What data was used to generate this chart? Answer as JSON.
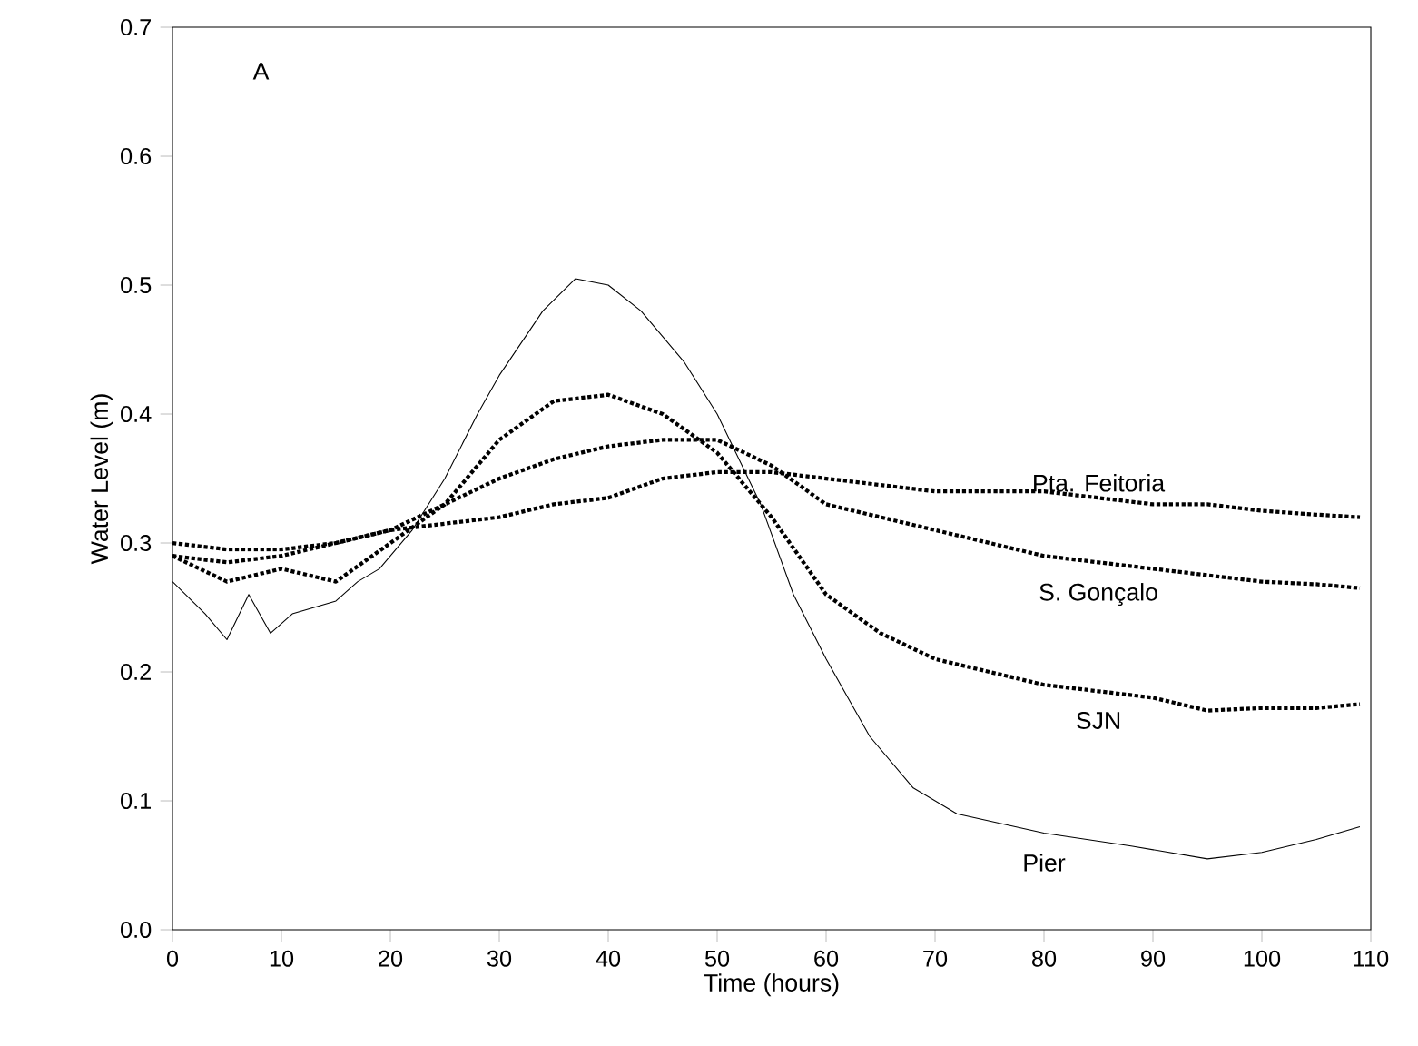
{
  "chart_data": {
    "type": "line",
    "xlabel": "Time (hours)",
    "ylabel": "Water Level (m)",
    "annotations": [
      "A"
    ],
    "xlim": [
      0,
      110
    ],
    "xticks": [
      0,
      10,
      20,
      30,
      40,
      50,
      60,
      70,
      80,
      90,
      100,
      110
    ],
    "ylim": [
      0,
      0.7
    ],
    "yticks": [
      {
        "value": 0,
        "label": "0.0"
      },
      {
        "value": 0.1,
        "label": "0.1"
      },
      {
        "value": 0.2,
        "label": "0.2"
      },
      {
        "value": 0.3,
        "label": "0.3"
      },
      {
        "value": 0.4,
        "label": "0.4"
      },
      {
        "value": 0.5,
        "label": "0.5"
      },
      {
        "value": 0.6,
        "label": "0.6"
      },
      {
        "value": 0.7,
        "label": "0.7"
      }
    ],
    "grid": false,
    "legend": false,
    "series": [
      {
        "name": "Pta. Feitoria",
        "color": "#000000",
        "line_style": "dotted",
        "x": [
          0,
          5,
          10,
          15,
          20,
          25,
          30,
          35,
          40,
          45,
          50,
          55,
          60,
          65,
          70,
          75,
          80,
          85,
          90,
          95,
          100,
          105,
          109
        ],
        "values": [
          0.3,
          0.295,
          0.295,
          0.3,
          0.31,
          0.315,
          0.32,
          0.33,
          0.335,
          0.35,
          0.355,
          0.355,
          0.35,
          0.345,
          0.34,
          0.34,
          0.34,
          0.335,
          0.33,
          0.33,
          0.325,
          0.322,
          0.32
        ]
      },
      {
        "name": "S. Gonçalo",
        "color": "#000000",
        "line_style": "dotted",
        "x": [
          0,
          5,
          10,
          15,
          20,
          25,
          30,
          35,
          40,
          45,
          50,
          55,
          60,
          65,
          70,
          75,
          80,
          85,
          90,
          95,
          100,
          105,
          109
        ],
        "values": [
          0.29,
          0.285,
          0.29,
          0.3,
          0.31,
          0.33,
          0.35,
          0.365,
          0.375,
          0.38,
          0.38,
          0.36,
          0.33,
          0.32,
          0.31,
          0.3,
          0.29,
          0.285,
          0.28,
          0.275,
          0.27,
          0.268,
          0.265
        ]
      },
      {
        "name": "SJN",
        "color": "#000000",
        "line_style": "dotted",
        "x": [
          0,
          5,
          10,
          15,
          20,
          25,
          30,
          35,
          40,
          45,
          50,
          55,
          60,
          65,
          70,
          75,
          80,
          85,
          90,
          95,
          100,
          105,
          109
        ],
        "values": [
          0.29,
          0.27,
          0.28,
          0.27,
          0.3,
          0.33,
          0.38,
          0.41,
          0.415,
          0.4,
          0.37,
          0.32,
          0.26,
          0.23,
          0.21,
          0.2,
          0.19,
          0.185,
          0.18,
          0.17,
          0.172,
          0.172,
          0.175
        ]
      },
      {
        "name": "Pier",
        "color": "#000000",
        "line_style": "solid",
        "x": [
          0,
          3,
          5,
          7,
          9,
          11,
          13,
          15,
          17,
          19,
          22,
          25,
          28,
          30,
          34,
          37,
          40,
          43,
          47,
          50,
          54,
          57,
          60,
          64,
          68,
          72,
          80,
          88,
          95,
          100,
          105,
          109
        ],
        "values": [
          0.27,
          0.245,
          0.225,
          0.26,
          0.23,
          0.245,
          0.25,
          0.255,
          0.27,
          0.28,
          0.31,
          0.35,
          0.4,
          0.43,
          0.48,
          0.505,
          0.5,
          0.48,
          0.44,
          0.4,
          0.33,
          0.26,
          0.21,
          0.15,
          0.11,
          0.09,
          0.075,
          0.065,
          0.055,
          0.06,
          0.07,
          0.08
        ]
      }
    ]
  }
}
